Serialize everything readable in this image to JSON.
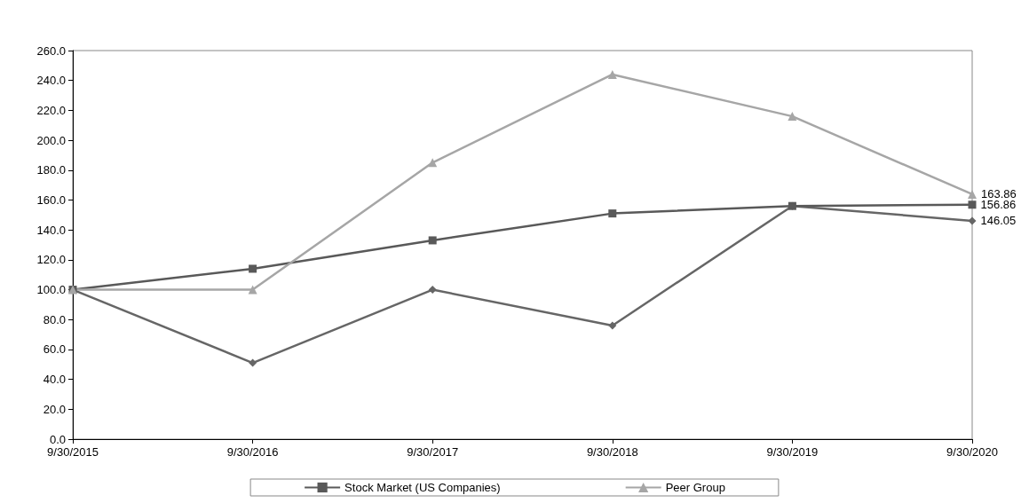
{
  "chart_data": {
    "type": "line",
    "categories": [
      "9/30/2015",
      "9/30/2016",
      "9/30/2017",
      "9/30/2018",
      "9/30/2019",
      "9/30/2020"
    ],
    "series": [
      {
        "color": "#666666",
        "marker": "diamond",
        "values": [
          100,
          51,
          100,
          76,
          156,
          146.05
        ],
        "value_labels": [
          null,
          null,
          null,
          null,
          null,
          "146.05"
        ]
      },
      {
        "name": "Stock Market (US Companies)",
        "color": "#595959",
        "marker": "square",
        "values": [
          100,
          114,
          133,
          151,
          156,
          156.86
        ],
        "value_labels": [
          null,
          null,
          null,
          null,
          null,
          "156.86"
        ]
      },
      {
        "name": "Peer Group",
        "color": "#a6a6a6",
        "marker": "triangle",
        "values": [
          100,
          100,
          185,
          244,
          216,
          163.86
        ],
        "value_labels": [
          null,
          null,
          null,
          null,
          null,
          "163.86"
        ]
      }
    ],
    "ylim": [
      0,
      260
    ],
    "yticks": [
      {
        "value": 0,
        "label": "0.0"
      },
      {
        "value": 20,
        "label": "20.0"
      },
      {
        "value": 40,
        "label": "40.0"
      },
      {
        "value": 60,
        "label": "60.0"
      },
      {
        "value": 80,
        "label": "80.0"
      },
      {
        "value": 100,
        "label": "100.0"
      },
      {
        "value": 120,
        "label": "120.0"
      },
      {
        "value": 140,
        "label": "140.0"
      },
      {
        "value": 160,
        "label": "160.0"
      },
      {
        "value": 180,
        "label": "180.0"
      },
      {
        "value": 200,
        "label": "200.0"
      },
      {
        "value": 220,
        "label": "220.0"
      },
      {
        "value": 240,
        "label": "240.0"
      },
      {
        "value": 260,
        "label": "260.0"
      }
    ],
    "grid": false,
    "legend": "bottom",
    "line_style": "solid"
  }
}
